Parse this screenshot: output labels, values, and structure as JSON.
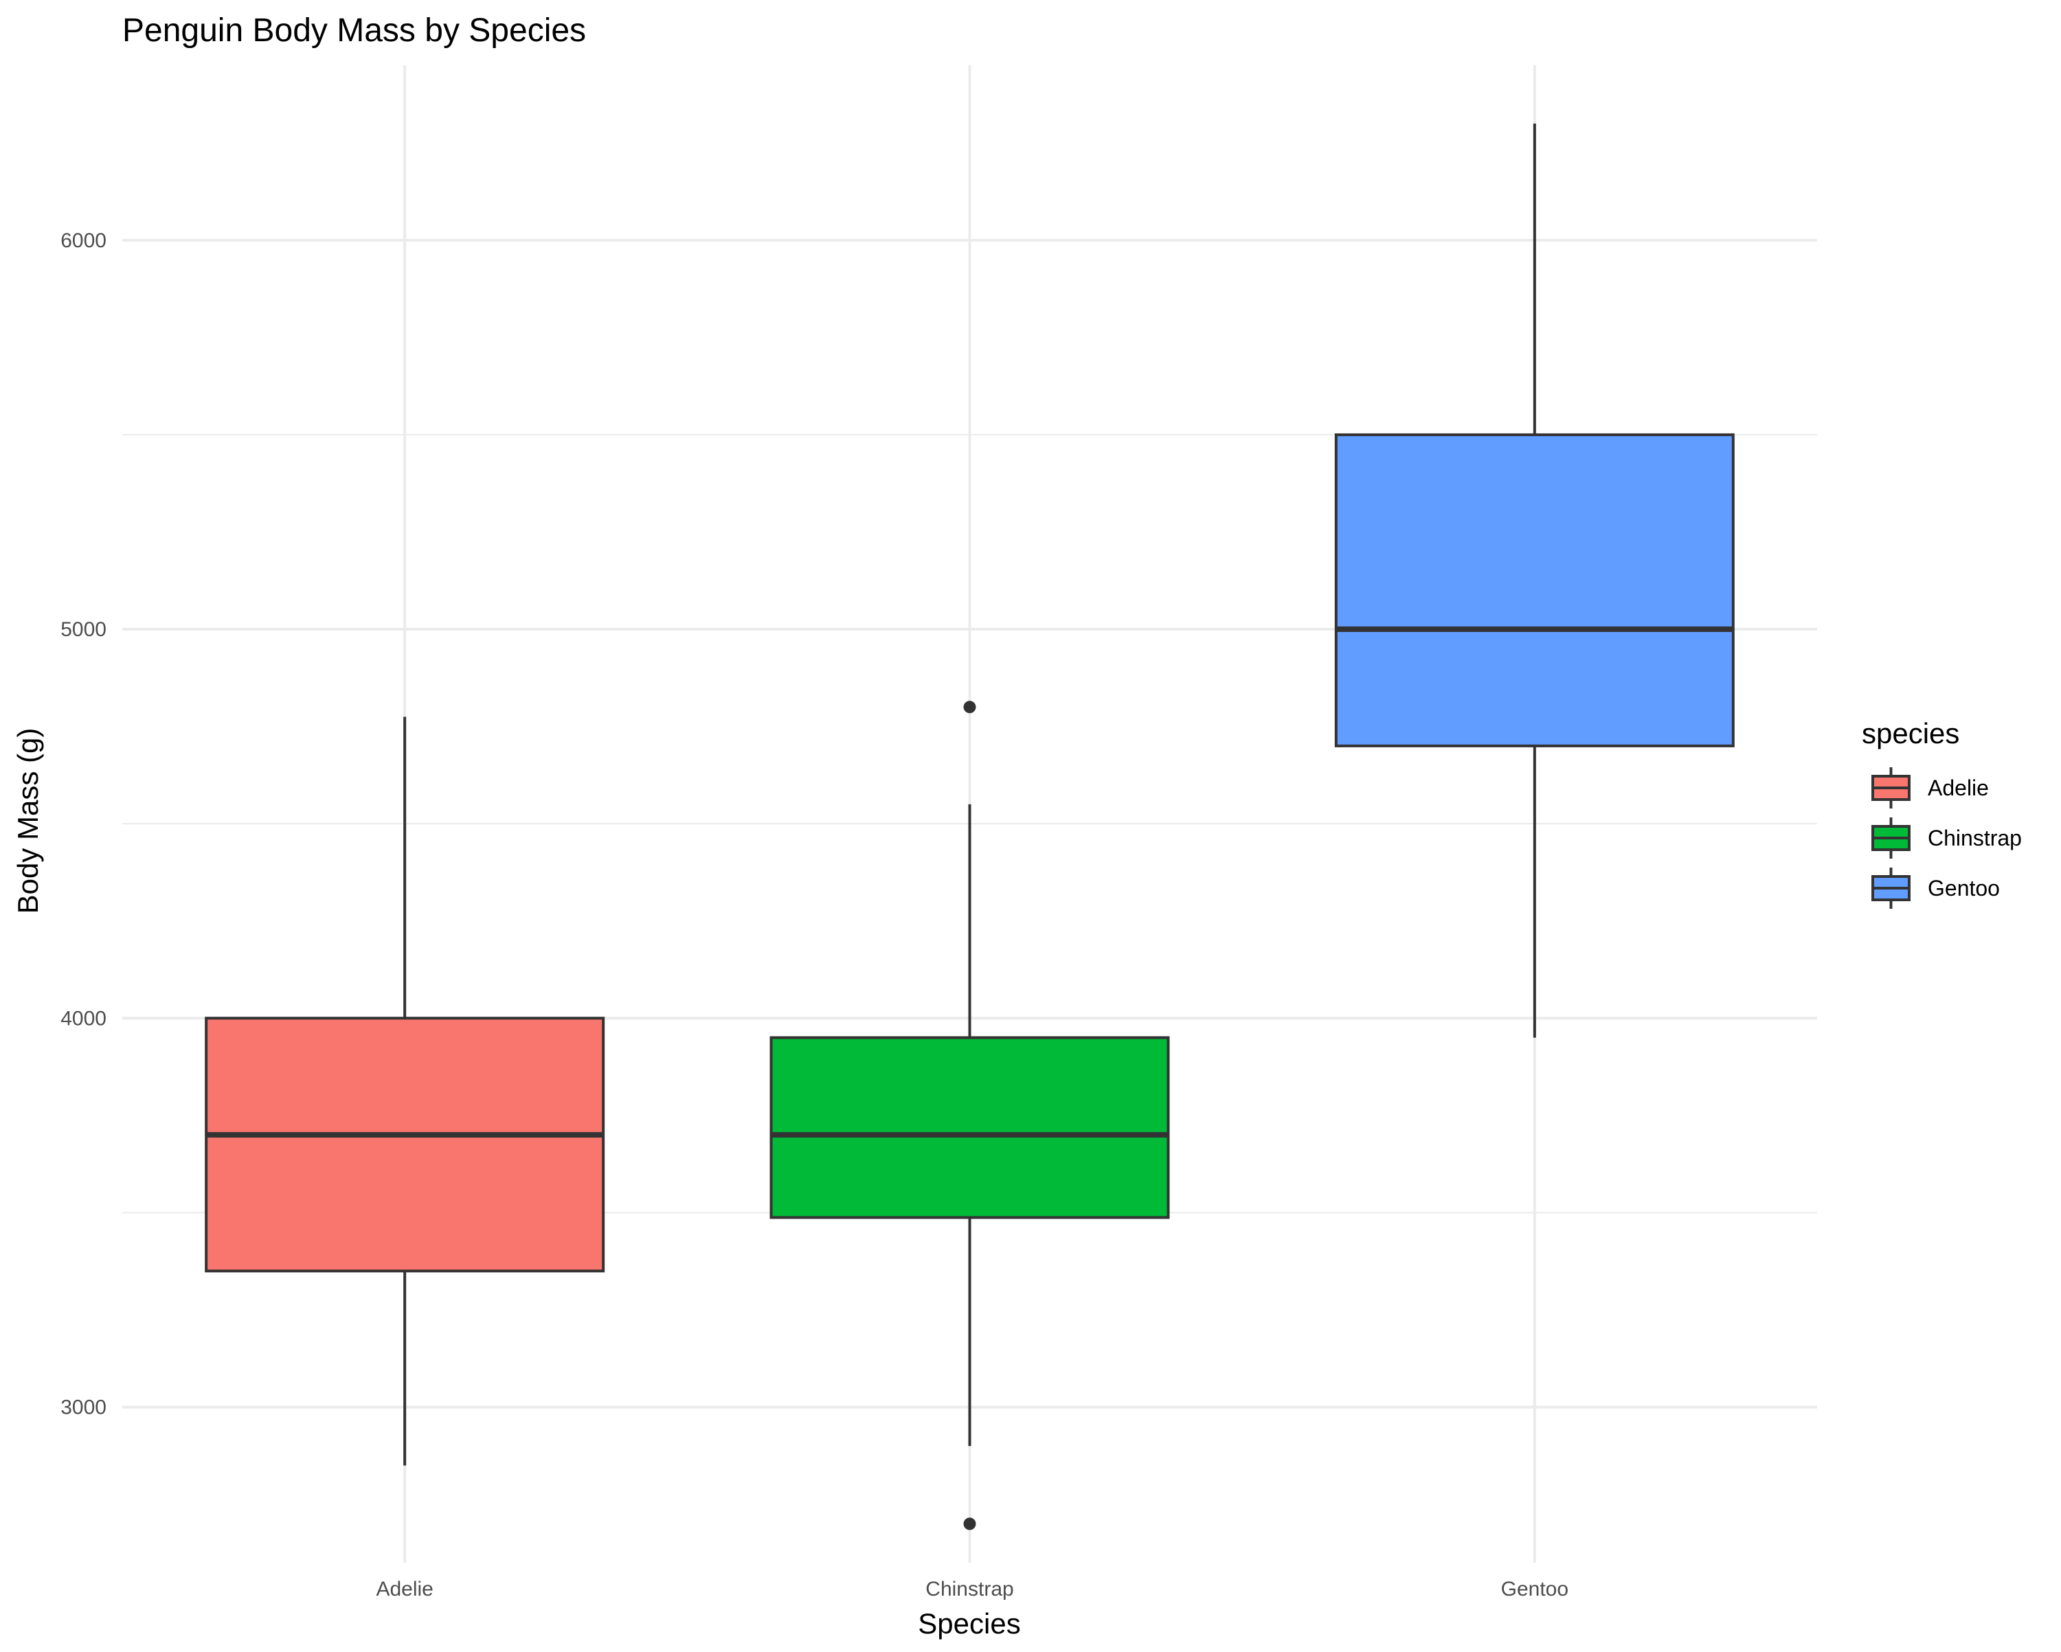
{
  "chart_data": {
    "type": "box",
    "title": "Penguin Body Mass by Species",
    "xlabel": "Species",
    "ylabel": "Body Mass (g)",
    "categories": [
      "Adelie",
      "Chinstrap",
      "Gentoo"
    ],
    "ylim": [
      2600,
      6450
    ],
    "yticks": [
      3000,
      4000,
      5000,
      6000
    ],
    "grid": true,
    "legend": {
      "title": "species",
      "position": "right",
      "entries": [
        "Adelie",
        "Chinstrap",
        "Gentoo"
      ]
    },
    "series": [
      {
        "name": "Adelie",
        "color": "#F8766D",
        "whisker_low": 2850,
        "q1": 3350,
        "median": 3700,
        "q3": 4000,
        "whisker_high": 4775,
        "outliers": []
      },
      {
        "name": "Chinstrap",
        "color": "#00BA38",
        "whisker_low": 2900,
        "q1": 3487.5,
        "median": 3700,
        "q3": 3950,
        "whisker_high": 4550,
        "outliers": [
          2700,
          4800
        ]
      },
      {
        "name": "Gentoo",
        "color": "#619CFF",
        "whisker_low": 3950,
        "q1": 4700,
        "median": 5000,
        "q3": 5500,
        "whisker_high": 6300,
        "outliers": []
      }
    ]
  }
}
